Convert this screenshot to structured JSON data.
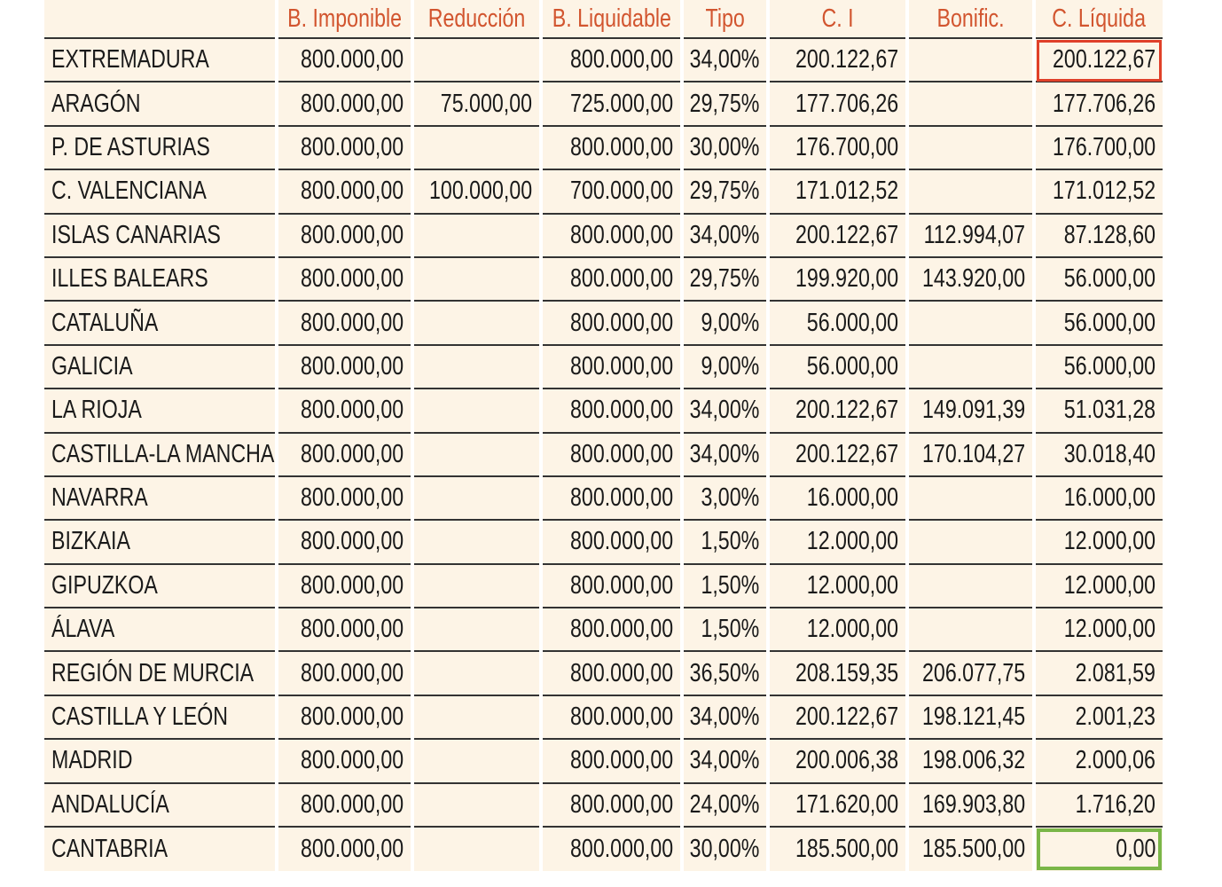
{
  "headers": [
    "",
    "B. Imponible",
    "Reducción",
    "B. Liquidable",
    "Tipo",
    "C. I",
    "Bonific.",
    "C. Líquida"
  ],
  "rows": [
    [
      "EXTREMADURA",
      "800.000,00",
      "",
      "800.000,00",
      "34,00%",
      "200.122,67",
      "",
      "200.122,67"
    ],
    [
      "ARAGÓN",
      "800.000,00",
      "75.000,00",
      "725.000,00",
      "29,75%",
      "177.706,26",
      "",
      "177.706,26"
    ],
    [
      "P. DE ASTURIAS",
      "800.000,00",
      "",
      "800.000,00",
      "30,00%",
      "176.700,00",
      "",
      "176.700,00"
    ],
    [
      "C. VALENCIANA",
      "800.000,00",
      "100.000,00",
      "700.000,00",
      "29,75%",
      "171.012,52",
      "",
      "171.012,52"
    ],
    [
      "ISLAS CANARIAS",
      "800.000,00",
      "",
      "800.000,00",
      "34,00%",
      "200.122,67",
      "112.994,07",
      "87.128,60"
    ],
    [
      "ILLES BALEARS",
      "800.000,00",
      "",
      "800.000,00",
      "29,75%",
      "199.920,00",
      "143.920,00",
      "56.000,00"
    ],
    [
      "CATALUÑA",
      "800.000,00",
      "",
      "800.000,00",
      "9,00%",
      "56.000,00",
      "",
      "56.000,00"
    ],
    [
      "GALICIA",
      "800.000,00",
      "",
      "800.000,00",
      "9,00%",
      "56.000,00",
      "",
      "56.000,00"
    ],
    [
      "LA RIOJA",
      "800.000,00",
      "",
      "800.000,00",
      "34,00%",
      "200.122,67",
      "149.091,39",
      "51.031,28"
    ],
    [
      "CASTILLA-LA MANCHA",
      "800.000,00",
      "",
      "800.000,00",
      "34,00%",
      "200.122,67",
      "170.104,27",
      "30.018,40"
    ],
    [
      "NAVARRA",
      "800.000,00",
      "",
      "800.000,00",
      "3,00%",
      "16.000,00",
      "",
      "16.000,00"
    ],
    [
      "BIZKAIA",
      "800.000,00",
      "",
      "800.000,00",
      "1,50%",
      "12.000,00",
      "",
      "12.000,00"
    ],
    [
      "GIPUZKOA",
      "800.000,00",
      "",
      "800.000,00",
      "1,50%",
      "12.000,00",
      "",
      "12.000,00"
    ],
    [
      "ÁLAVA",
      "800.000,00",
      "",
      "800.000,00",
      "1,50%",
      "12.000,00",
      "",
      "12.000,00"
    ],
    [
      "REGIÓN DE MURCIA",
      "800.000,00",
      "",
      "800.000,00",
      "36,50%",
      "208.159,35",
      "206.077,75",
      "2.081,59"
    ],
    [
      "CASTILLA Y LEÓN",
      "800.000,00",
      "",
      "800.000,00",
      "34,00%",
      "200.122,67",
      "198.121,45",
      "2.001,23"
    ],
    [
      "MADRID",
      "800.000,00",
      "",
      "800.000,00",
      "34,00%",
      "200.006,38",
      "198.006,32",
      "2.000,06"
    ],
    [
      "ANDALUCÍA",
      "800.000,00",
      "",
      "800.000,00",
      "24,00%",
      "171.620,00",
      "169.903,80",
      "1.716,20"
    ],
    [
      "CANTABRIA",
      "800.000,00",
      "",
      "800.000,00",
      "30,00%",
      "185.500,00",
      "185.500,00",
      "0,00"
    ]
  ],
  "highlight_colors": {
    "max": "#e0402a",
    "min": "#7ab648"
  }
}
